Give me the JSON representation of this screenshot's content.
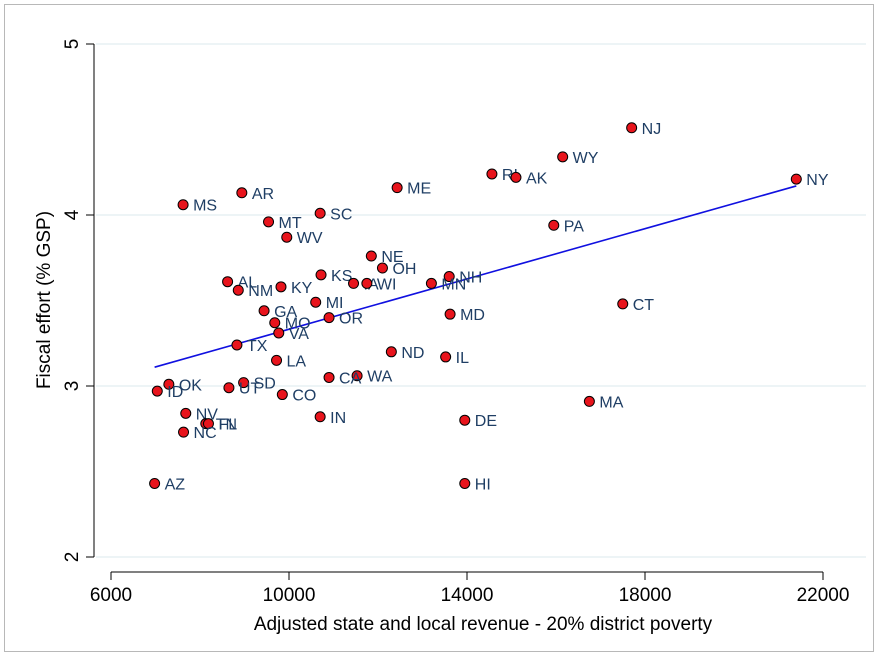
{
  "chart_data": {
    "type": "scatter",
    "title": "",
    "xlabel": "Adjusted state and local revenue - 20% district poverty",
    "ylabel": "Fiscal effort (% GSP)",
    "xlim": [
      6000,
      22000
    ],
    "ylim": [
      2,
      5
    ],
    "xticks": [
      6000,
      10000,
      14000,
      18000,
      22000
    ],
    "yticks": [
      2,
      3,
      4,
      5
    ],
    "grid": true,
    "colors": {
      "marker_fill": "#e8141c",
      "marker_edge": "#000000",
      "label": "#1f3e64",
      "fit_line": "#1010e0",
      "grid": "#dbe8ec"
    },
    "points": [
      {
        "label": "NJ",
        "x": 17700,
        "y": 4.51
      },
      {
        "label": "WY",
        "x": 16150,
        "y": 4.34
      },
      {
        "label": "RI",
        "x": 14560,
        "y": 4.24
      },
      {
        "label": "AK",
        "x": 15100,
        "y": 4.22
      },
      {
        "label": "NY",
        "x": 21400,
        "y": 4.21
      },
      {
        "label": "ME",
        "x": 12430,
        "y": 4.16
      },
      {
        "label": "AR",
        "x": 8940,
        "y": 4.13
      },
      {
        "label": "MS",
        "x": 7620,
        "y": 4.06
      },
      {
        "label": "SC",
        "x": 10700,
        "y": 4.01
      },
      {
        "label": "MT",
        "x": 9540,
        "y": 3.96
      },
      {
        "label": "PA",
        "x": 15950,
        "y": 3.94
      },
      {
        "label": "WV",
        "x": 9950,
        "y": 3.87
      },
      {
        "label": "NE",
        "x": 11850,
        "y": 3.76
      },
      {
        "label": "OH",
        "x": 12100,
        "y": 3.69
      },
      {
        "label": "KS",
        "x": 10720,
        "y": 3.65
      },
      {
        "label": "NH",
        "x": 13600,
        "y": 3.64
      },
      {
        "label": "AL",
        "x": 8620,
        "y": 3.61
      },
      {
        "label": "IA",
        "x": 11450,
        "y": 3.6
      },
      {
        "label": "WI",
        "x": 11750,
        "y": 3.6
      },
      {
        "label": "MN",
        "x": 13200,
        "y": 3.6
      },
      {
        "label": "KY",
        "x": 9820,
        "y": 3.58
      },
      {
        "label": "NM",
        "x": 8860,
        "y": 3.56
      },
      {
        "label": "MI",
        "x": 10600,
        "y": 3.49
      },
      {
        "label": "CT",
        "x": 17500,
        "y": 3.48
      },
      {
        "label": "GA",
        "x": 9440,
        "y": 3.44
      },
      {
        "label": "MD",
        "x": 13620,
        "y": 3.42
      },
      {
        "label": "OR",
        "x": 10900,
        "y": 3.4
      },
      {
        "label": "MO",
        "x": 9680,
        "y": 3.37
      },
      {
        "label": "VA",
        "x": 9770,
        "y": 3.31
      },
      {
        "label": "TX",
        "x": 8830,
        "y": 3.24
      },
      {
        "label": "ND",
        "x": 12300,
        "y": 3.2
      },
      {
        "label": "IL",
        "x": 13520,
        "y": 3.17
      },
      {
        "label": "LA",
        "x": 9720,
        "y": 3.15
      },
      {
        "label": "WA",
        "x": 11530,
        "y": 3.06
      },
      {
        "label": "CA",
        "x": 10900,
        "y": 3.05
      },
      {
        "label": "SD",
        "x": 8980,
        "y": 3.02
      },
      {
        "label": "OK",
        "x": 7300,
        "y": 3.01
      },
      {
        "label": "UT",
        "x": 8650,
        "y": 2.99
      },
      {
        "label": "ID",
        "x": 7040,
        "y": 2.97
      },
      {
        "label": "CO",
        "x": 9850,
        "y": 2.95
      },
      {
        "label": "MA",
        "x": 16750,
        "y": 2.91
      },
      {
        "label": "NV",
        "x": 7680,
        "y": 2.84
      },
      {
        "label": "IN",
        "x": 10700,
        "y": 2.82
      },
      {
        "label": "DE",
        "x": 13950,
        "y": 2.8
      },
      {
        "label": "TN",
        "x": 8130,
        "y": 2.78
      },
      {
        "label": "FL",
        "x": 8190,
        "y": 2.78
      },
      {
        "label": "NC",
        "x": 7630,
        "y": 2.73
      },
      {
        "label": "AZ",
        "x": 6980,
        "y": 2.43
      },
      {
        "label": "HI",
        "x": 13950,
        "y": 2.43
      }
    ],
    "fit_line": {
      "x": [
        6980,
        21400
      ],
      "y": [
        3.11,
        4.17
      ]
    }
  }
}
